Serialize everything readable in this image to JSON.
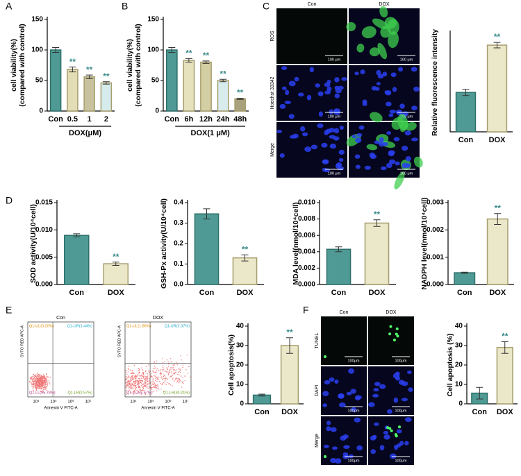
{
  "panel_labels": [
    "A",
    "B",
    "C",
    "D",
    "E",
    "F"
  ],
  "chart_data": [
    {
      "type": "bar",
      "ylabel": [
        "cell viability(%)",
        "(compared with control)"
      ],
      "categories": [
        "Con",
        "0.5",
        "1",
        "2"
      ],
      "values": [
        100,
        68,
        56,
        46
      ],
      "errors": [
        4,
        4,
        3,
        2
      ],
      "colors": [
        "#4f9a94",
        "#e2ddb4",
        "#c9c29e",
        "#d6ecec"
      ],
      "significance": [
        null,
        "**",
        "**",
        "**"
      ],
      "group_label": "DOX(μM)",
      "ylim": [
        0,
        150
      ],
      "yticks": [
        0,
        50,
        100,
        150
      ]
    },
    {
      "type": "bar",
      "ylabel": [
        "cell viability(%)",
        "(compared with control)"
      ],
      "categories": [
        "Con",
        "6h",
        "12h",
        "24h",
        "48h"
      ],
      "values": [
        100,
        83,
        80,
        50,
        20
      ],
      "errors": [
        4,
        3,
        2,
        2,
        1
      ],
      "colors": [
        "#4f9a94",
        "#e6e2bd",
        "#d4cea4",
        "#d8eced",
        "#a9a17c"
      ],
      "significance": [
        null,
        "**",
        "**",
        "**",
        "**"
      ],
      "group_label": "DOX(1 μM)",
      "ylim": [
        0,
        150
      ],
      "yticks": [
        0,
        50,
        100,
        150
      ]
    },
    {
      "type": "bar",
      "ylabel": [
        "Relative fluorescence intensity"
      ],
      "categories": [
        "Con",
        "DOX"
      ],
      "values": [
        1.0,
        2.2
      ],
      "errors": [
        0.08,
        0.07
      ],
      "colors": [
        "#4f9a94",
        "#ebe7c9"
      ],
      "significance": [
        null,
        "**"
      ],
      "ylim": [
        0,
        2.5
      ]
    },
    {
      "type": "bar",
      "ylabel": [
        "SOD activity(U/10⁴cell)"
      ],
      "categories": [
        "Con",
        "DOX"
      ],
      "values": [
        0.009,
        0.0038
      ],
      "errors": [
        0.0003,
        0.0003
      ],
      "colors": [
        "#4f9a94",
        "#ebe7c9"
      ],
      "significance": [
        null,
        "**"
      ],
      "ylim": [
        0,
        0.015
      ],
      "yticks": [
        {
          "value": 0,
          "label": "0.000"
        },
        {
          "value": 0.005,
          "label": "0.005"
        },
        {
          "value": 0.01,
          "label": "0.010"
        },
        {
          "value": 0.015,
          "label": "0.015"
        }
      ]
    },
    {
      "type": "bar",
      "ylabel": [
        "GSH-Px activity(U/10⁴cell)"
      ],
      "categories": [
        "Con",
        "DOX"
      ],
      "values": [
        0.345,
        0.13
      ],
      "errors": [
        0.025,
        0.015
      ],
      "colors": [
        "#4f9a94",
        "#ebe7c9"
      ],
      "significance": [
        null,
        "**"
      ],
      "ylim": [
        0,
        0.4
      ],
      "yticks": [
        {
          "value": 0,
          "label": "0.0"
        },
        0.1,
        0.2,
        0.3,
        0.4
      ]
    },
    {
      "type": "bar",
      "ylabel": [
        "MDA level(nmol/10⁴cell)"
      ],
      "categories": [
        "Con",
        "DOX"
      ],
      "values": [
        0.0043,
        0.0075
      ],
      "errors": [
        0.0003,
        0.0004
      ],
      "colors": [
        "#4f9a94",
        "#ebe7c9"
      ],
      "significance": [
        null,
        "**"
      ],
      "ylim": [
        0,
        0.01
      ],
      "yticks": [
        {
          "value": 0,
          "label": "0.000"
        },
        0.002,
        0.004,
        0.006,
        0.008,
        {
          "value": 0.01,
          "label": "0.010"
        }
      ]
    },
    {
      "type": "bar",
      "ylabel": [
        "NADPH level(nmol/10⁴cell)"
      ],
      "categories": [
        "Con",
        "DOX"
      ],
      "values": [
        0.00043,
        0.0024
      ],
      "errors": [
        2e-05,
        0.0002
      ],
      "colors": [
        "#4f9a94",
        "#ebe7c9"
      ],
      "significance": [
        null,
        "**"
      ],
      "ylim": [
        0,
        0.003
      ],
      "yticks": [
        {
          "value": 0,
          "label": "0.000"
        },
        0.001,
        0.002,
        0.003
      ]
    },
    {
      "type": "bar",
      "ylabel": [
        "Cell apoptosis(%)"
      ],
      "categories": [
        "Con",
        "DOX"
      ],
      "values": [
        4.5,
        30
      ],
      "errors": [
        0.5,
        4
      ],
      "colors": [
        "#4f9a94",
        "#ebe7c9"
      ],
      "significance": [
        null,
        "**"
      ],
      "ylim": [
        0,
        40
      ],
      "yticks": [
        0,
        10,
        20,
        30,
        40
      ]
    },
    {
      "type": "bar",
      "ylabel": [
        "Cell apoptosis (%)"
      ],
      "categories": [
        "Con",
        "DOX"
      ],
      "values": [
        5.5,
        29
      ],
      "errors": [
        3,
        3
      ],
      "colors": [
        "#4f9a94",
        "#ebe7c9"
      ],
      "significance": [
        null,
        "**"
      ],
      "ylim": [
        0,
        40
      ],
      "yticks": [
        0,
        10,
        20,
        30,
        40
      ]
    }
  ],
  "micrographs": [
    {
      "columns": [
        "Con",
        "DOX"
      ],
      "rows": [
        "ROS",
        "Hoechst 33342",
        "Merge"
      ],
      "scale_bar": "100 μm"
    },
    {
      "columns": [
        "Con",
        "DOX"
      ],
      "rows": [
        "TUNEL",
        "DAPI",
        "Merge"
      ],
      "scale_bar": "100μm"
    }
  ],
  "flow": {
    "x_label": "Annexin V FITC-A",
    "y_label": "SYTO RED APC-A",
    "x_ticks": [
      "10⁴",
      "10⁵",
      "10⁶",
      "10⁷"
    ],
    "plots": [
      {
        "title": "Con",
        "quadrants": [
          "Q1-UL(0.20%)",
          "Q1-UR(1.44%)",
          "Q1-LL(95.78%)",
          "Q1-LR(2.57%)"
        ]
      },
      {
        "title": "DOX",
        "quadrants": [
          "Q1-UL(1.86%)",
          "Q1-UR(2.37%)",
          "Q1-LL(65.57%)",
          "Q1-LR(30.21%)"
        ]
      }
    ]
  }
}
